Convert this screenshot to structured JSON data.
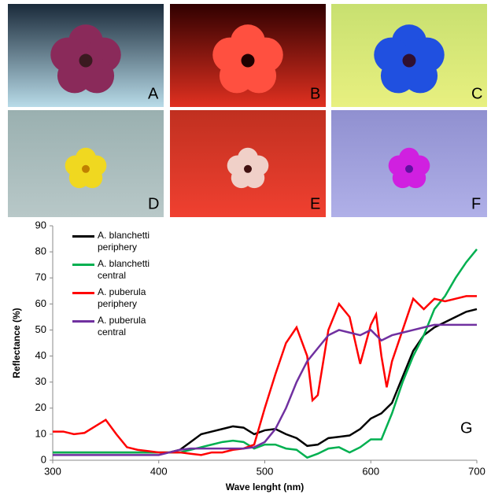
{
  "panels": [
    "A",
    "B",
    "C",
    "D",
    "E",
    "F"
  ],
  "chart_data": {
    "type": "line",
    "panel_label": "G",
    "x_label": "Wave lenght (nm)",
    "y_label": "Reflectance (%)",
    "xlim": [
      300,
      700
    ],
    "xticks": [
      300,
      400,
      500,
      600,
      700
    ],
    "ylim": [
      0,
      90
    ],
    "yticks": [
      0,
      10,
      20,
      30,
      40,
      50,
      60,
      70,
      80,
      90
    ],
    "series": [
      {
        "name": "A. blanchetti periphery",
        "color": "#000000",
        "x": [
          300,
          320,
          340,
          360,
          380,
          400,
          410,
          420,
          430,
          440,
          450,
          460,
          470,
          480,
          490,
          500,
          510,
          520,
          530,
          540,
          550,
          560,
          570,
          580,
          590,
          600,
          610,
          620,
          630,
          640,
          650,
          660,
          670,
          680,
          690,
          700
        ],
        "values": [
          3,
          3,
          3,
          3,
          3,
          3,
          3,
          4,
          7,
          10,
          11,
          12,
          13,
          12.5,
          10,
          11.5,
          12,
          10,
          8.5,
          5.5,
          6,
          8.5,
          9,
          9.5,
          12,
          16,
          18,
          22,
          32,
          42,
          48,
          51,
          53,
          55,
          57,
          58
        ]
      },
      {
        "name": "A. blanchetti central",
        "color": "#00b050",
        "x": [
          300,
          320,
          340,
          360,
          380,
          400,
          410,
          420,
          430,
          440,
          450,
          460,
          470,
          480,
          490,
          500,
          510,
          520,
          530,
          540,
          550,
          560,
          570,
          580,
          590,
          600,
          610,
          620,
          630,
          640,
          650,
          660,
          670,
          680,
          690,
          700
        ],
        "values": [
          3,
          3,
          3,
          3,
          3,
          3,
          3,
          3,
          4,
          5,
          6,
          7,
          7.5,
          7,
          4.5,
          6,
          6,
          4.5,
          4,
          1,
          2.5,
          4.5,
          5,
          3,
          5,
          8,
          8,
          18,
          30,
          40,
          48,
          58,
          63,
          70,
          76,
          81
        ]
      },
      {
        "name": "A. puberula periphery",
        "color": "#ff0000",
        "x": [
          300,
          310,
          320,
          330,
          340,
          350,
          360,
          370,
          380,
          390,
          400,
          410,
          420,
          430,
          440,
          450,
          460,
          470,
          480,
          490,
          500,
          510,
          520,
          530,
          540,
          545,
          550,
          560,
          570,
          580,
          590,
          600,
          605,
          610,
          615,
          620,
          630,
          640,
          650,
          660,
          670,
          680,
          690,
          700
        ],
        "values": [
          11,
          11,
          10,
          10.5,
          13,
          15.5,
          10,
          5,
          4,
          3.5,
          3,
          3,
          3,
          2.5,
          2,
          3,
          3,
          4,
          4.5,
          6,
          20,
          33,
          45,
          51,
          40,
          23,
          25,
          50,
          60,
          55,
          37,
          52,
          56,
          40,
          28,
          38,
          50,
          62,
          58,
          62,
          61,
          62,
          63,
          63
        ]
      },
      {
        "name": "A. puberula central",
        "color": "#7030a0",
        "x": [
          300,
          320,
          340,
          360,
          380,
          400,
          410,
          420,
          430,
          440,
          450,
          460,
          470,
          480,
          490,
          500,
          510,
          520,
          530,
          540,
          550,
          560,
          570,
          580,
          590,
          600,
          610,
          620,
          630,
          640,
          650,
          660,
          670,
          680,
          690,
          700
        ],
        "values": [
          2,
          2,
          2,
          2,
          2,
          2,
          3,
          4,
          4.5,
          4.5,
          4.5,
          4.5,
          4.5,
          4.5,
          5,
          7,
          12,
          20,
          30,
          38,
          43,
          48,
          50,
          49,
          48,
          50,
          46,
          48,
          49,
          50,
          51,
          52,
          52,
          52,
          52,
          52
        ]
      }
    ]
  }
}
